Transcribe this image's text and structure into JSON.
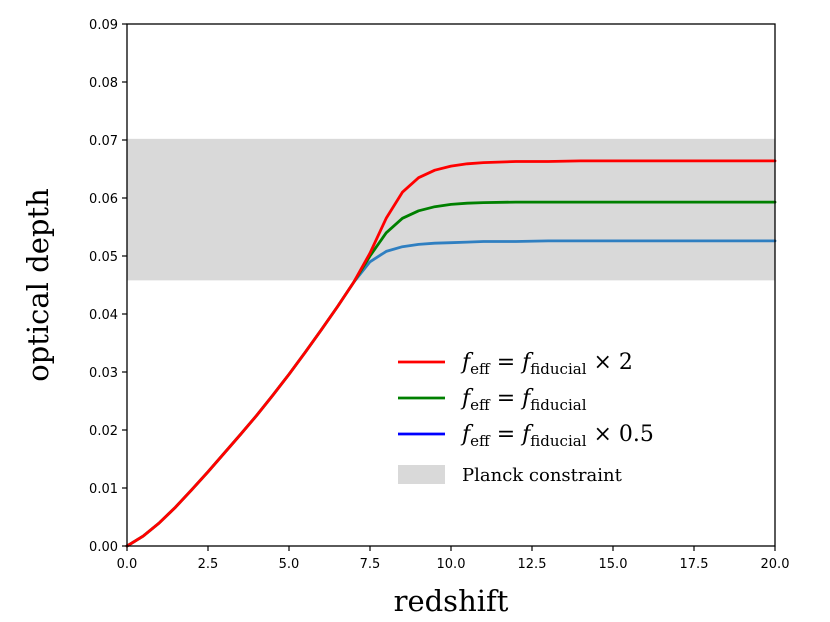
{
  "chart_data": {
    "type": "line",
    "title": "",
    "xlabel": "redshift",
    "ylabel": "optical depth",
    "xlim": [
      0,
      20
    ],
    "ylim": [
      0,
      0.09
    ],
    "xticks": [
      "0.0",
      "2.5",
      "5.0",
      "7.5",
      "10.0",
      "12.5",
      "15.0",
      "17.5",
      "20.0"
    ],
    "yticks": [
      "0.00",
      "0.01",
      "0.02",
      "0.03",
      "0.04",
      "0.05",
      "0.06",
      "0.07",
      "0.08",
      "0.09"
    ],
    "grid": false,
    "legend_position": "lower-right",
    "band": {
      "name": "Planck constraint",
      "y_low": 0.0458,
      "y_high": 0.0702,
      "color": "#d9d9d9"
    },
    "series": [
      {
        "name": "f_eff = f_fiducial × 0.5",
        "legend_base": "f",
        "legend_sub1": "eff",
        "legend_mid": " = f",
        "legend_sub2": "fiducial",
        "legend_suffix": " × 0.5",
        "color": "#2f7fc1",
        "legend_color": "#0000ff",
        "x": [
          0,
          0.5,
          1,
          1.5,
          2,
          2.5,
          3,
          3.5,
          4,
          4.5,
          5,
          5.5,
          6,
          6.5,
          7,
          7.5,
          8,
          8.5,
          9,
          9.5,
          10,
          10.5,
          11,
          12,
          13,
          14,
          15,
          16,
          17,
          18,
          19,
          20
        ],
        "y": [
          0.0,
          0.0017,
          0.004,
          0.0067,
          0.0097,
          0.0128,
          0.016,
          0.0192,
          0.0225,
          0.026,
          0.0296,
          0.0334,
          0.0373,
          0.0413,
          0.0455,
          0.049,
          0.0508,
          0.0516,
          0.052,
          0.0522,
          0.0523,
          0.0524,
          0.0525,
          0.0525,
          0.0526,
          0.0526,
          0.0526,
          0.0526,
          0.0526,
          0.0526,
          0.0526,
          0.0526
        ]
      },
      {
        "name": "f_eff = f_fiducial",
        "legend_base": "f",
        "legend_sub1": "eff",
        "legend_mid": " = f",
        "legend_sub2": "fiducial",
        "legend_suffix": "",
        "color": "#008000",
        "legend_color": "#008000",
        "x": [
          0,
          0.5,
          1,
          1.5,
          2,
          2.5,
          3,
          3.5,
          4,
          4.5,
          5,
          5.5,
          6,
          6.5,
          7,
          7.5,
          8,
          8.5,
          9,
          9.5,
          10,
          10.5,
          11,
          12,
          13,
          14,
          15,
          16,
          17,
          18,
          19,
          20
        ],
        "y": [
          0.0,
          0.0017,
          0.004,
          0.0067,
          0.0097,
          0.0128,
          0.016,
          0.0192,
          0.0225,
          0.026,
          0.0296,
          0.0334,
          0.0373,
          0.0413,
          0.0455,
          0.05,
          0.054,
          0.0565,
          0.0578,
          0.0585,
          0.0589,
          0.0591,
          0.0592,
          0.0593,
          0.0593,
          0.0593,
          0.0593,
          0.0593,
          0.0593,
          0.0593,
          0.0593,
          0.0593
        ]
      },
      {
        "name": "f_eff = f_fiducial × 2",
        "legend_base": "f",
        "legend_sub1": "eff",
        "legend_mid": " = f",
        "legend_sub2": "fiducial",
        "legend_suffix": " × 2",
        "color": "#ff0000",
        "legend_color": "#ff0000",
        "x": [
          0,
          0.5,
          1,
          1.5,
          2,
          2.5,
          3,
          3.5,
          4,
          4.5,
          5,
          5.5,
          6,
          6.5,
          7,
          7.5,
          8,
          8.5,
          9,
          9.5,
          10,
          10.5,
          11,
          12,
          13,
          14,
          15,
          16,
          17,
          18,
          19,
          20
        ],
        "y": [
          0.0,
          0.0017,
          0.004,
          0.0067,
          0.0097,
          0.0128,
          0.016,
          0.0192,
          0.0225,
          0.026,
          0.0296,
          0.0334,
          0.0373,
          0.0413,
          0.0455,
          0.0505,
          0.0565,
          0.061,
          0.0635,
          0.0648,
          0.0655,
          0.0659,
          0.0661,
          0.0663,
          0.0663,
          0.0664,
          0.0664,
          0.0664,
          0.0664,
          0.0664,
          0.0664,
          0.0664
        ]
      }
    ],
    "legend_order": [
      2,
      1,
      0
    ]
  }
}
